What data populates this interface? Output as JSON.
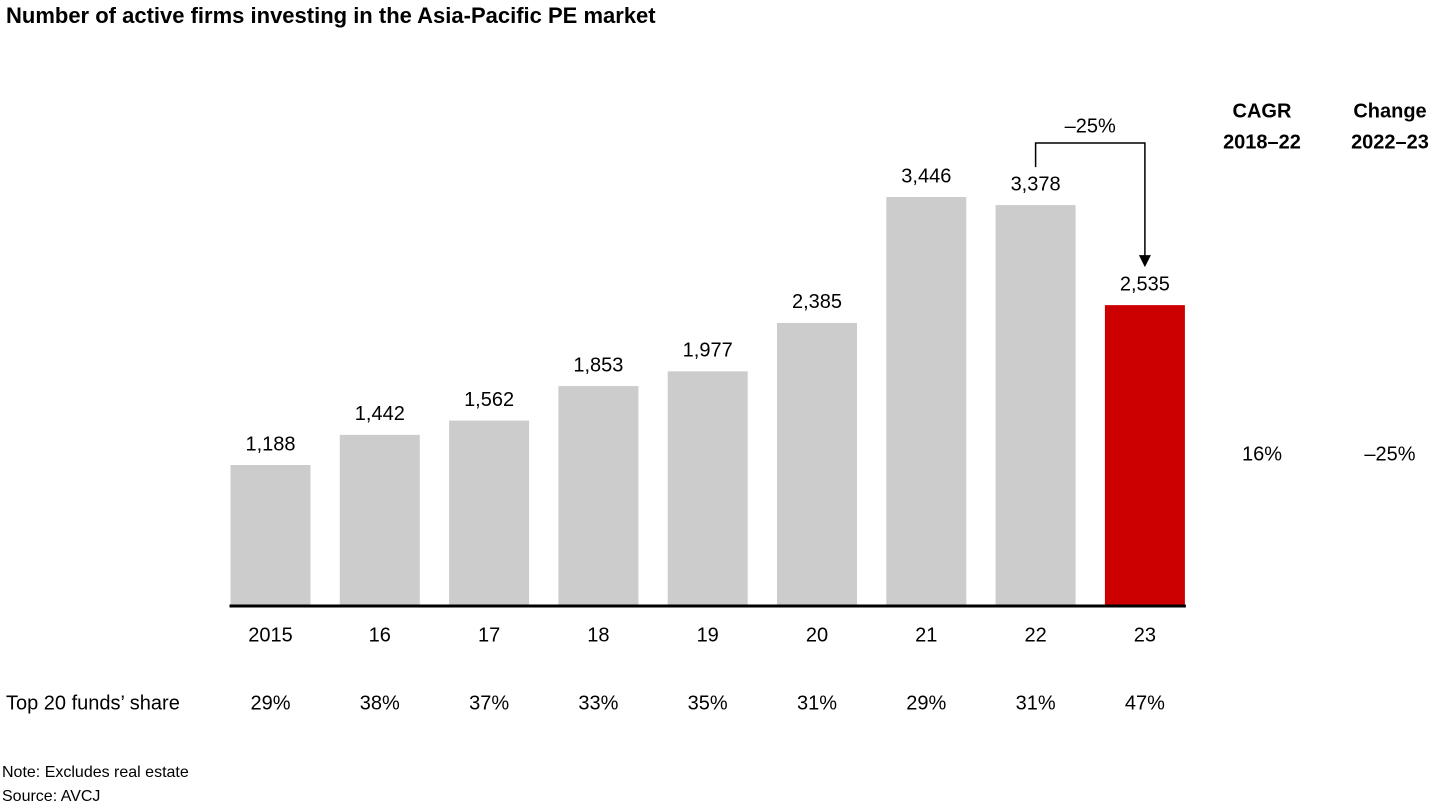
{
  "chart_data": {
    "type": "bar",
    "title": "Number of active firms investing in the Asia-Pacific PE market",
    "categories": [
      "2015",
      "16",
      "17",
      "18",
      "19",
      "20",
      "21",
      "22",
      "23"
    ],
    "values": [
      1188,
      1442,
      1562,
      1853,
      1977,
      2385,
      3446,
      3378,
      2535
    ],
    "value_labels": [
      "1,188",
      "1,442",
      "1,562",
      "1,853",
      "1,977",
      "2,385",
      "3,446",
      "3,378",
      "2,535"
    ],
    "colors": [
      "#cccccc",
      "#cccccc",
      "#cccccc",
      "#cccccc",
      "#cccccc",
      "#cccccc",
      "#cccccc",
      "#cccccc",
      "#cc0000"
    ],
    "annotation": "–25%",
    "share": {
      "label": "Top 20 funds’ share",
      "values": [
        29,
        38,
        37,
        33,
        35,
        31,
        29,
        31,
        47
      ],
      "value_labels": [
        "29%",
        "38%",
        "37%",
        "33%",
        "35%",
        "31%",
        "29%",
        "31%",
        "47%"
      ]
    },
    "side_columns": [
      {
        "header": [
          "CAGR",
          "2018–22"
        ],
        "value": 16,
        "value_label": "16%"
      },
      {
        "header": [
          "Change",
          "2022–23"
        ],
        "value": -25,
        "value_label": "–25%"
      }
    ],
    "notes": [
      "Note: Excludes real estate",
      "Source: AVCJ"
    ]
  }
}
